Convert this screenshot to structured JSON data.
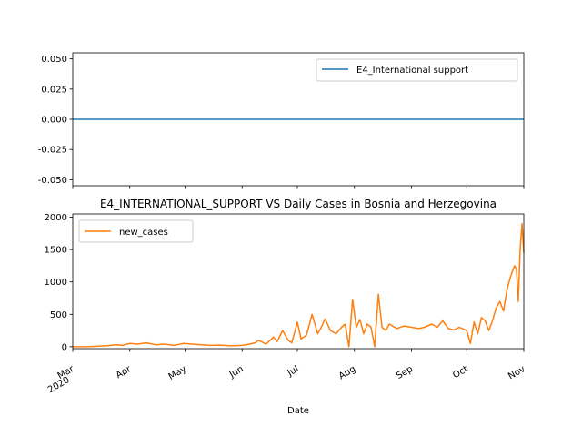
{
  "chart_data": [
    {
      "type": "line",
      "title": "",
      "xlabel": "",
      "ylabel": "",
      "ylim": [
        -0.055,
        0.055
      ],
      "yticks": [
        "0.050",
        "0.025",
        "0.000",
        "-0.025",
        "-0.050"
      ],
      "ytick_values": [
        0.05,
        0.025,
        0.0,
        -0.025,
        -0.05
      ],
      "grid": false,
      "legend": "top-right",
      "series": [
        {
          "name": "E4_International support",
          "color": "#1f77b4",
          "x": [
            "2020-03-01",
            "2020-11-01"
          ],
          "values": [
            0,
            0
          ]
        }
      ]
    },
    {
      "type": "line",
      "title": "E4_INTERNATIONAL_SUPPORT VS Daily Cases in Bosnia and Herzegovina",
      "xlabel": "Date",
      "ylabel": "",
      "ylim": [
        -30,
        2050
      ],
      "yticks": [
        "0",
        "500",
        "1000",
        "1500",
        "2000"
      ],
      "ytick_values": [
        0,
        500,
        1000,
        1500,
        2000
      ],
      "xticks": [
        {
          "label": "Mar",
          "sub": "2020"
        },
        {
          "label": "Apr",
          "sub": ""
        },
        {
          "label": "May",
          "sub": ""
        },
        {
          "label": "Jun",
          "sub": ""
        },
        {
          "label": "Jul",
          "sub": ""
        },
        {
          "label": "Aug",
          "sub": ""
        },
        {
          "label": "Sep",
          "sub": ""
        },
        {
          "label": "Oct",
          "sub": ""
        },
        {
          "label": "Nov",
          "sub": ""
        }
      ],
      "grid": false,
      "legend": "top-left",
      "series": [
        {
          "name": "new_cases",
          "color": "#ff7f0e",
          "x": [
            "2020-03-01",
            "2020-03-10",
            "2020-03-20",
            "2020-03-25",
            "2020-03-28",
            "2020-04-01",
            "2020-04-05",
            "2020-04-10",
            "2020-04-15",
            "2020-04-20",
            "2020-04-25",
            "2020-04-30",
            "2020-05-05",
            "2020-05-10",
            "2020-05-15",
            "2020-05-20",
            "2020-05-25",
            "2020-06-01",
            "2020-06-05",
            "2020-06-08",
            "2020-06-10",
            "2020-06-14",
            "2020-06-18",
            "2020-06-20",
            "2020-06-23",
            "2020-06-26",
            "2020-06-28",
            "2020-07-01",
            "2020-07-03",
            "2020-07-06",
            "2020-07-09",
            "2020-07-12",
            "2020-07-14",
            "2020-07-16",
            "2020-07-19",
            "2020-07-22",
            "2020-07-25",
            "2020-07-27",
            "2020-07-29",
            "2020-07-31",
            "2020-08-02",
            "2020-08-04",
            "2020-08-06",
            "2020-08-08",
            "2020-08-10",
            "2020-08-12",
            "2020-08-14",
            "2020-08-16",
            "2020-08-18",
            "2020-08-20",
            "2020-08-24",
            "2020-08-28",
            "2020-09-01",
            "2020-09-05",
            "2020-09-08",
            "2020-09-12",
            "2020-09-15",
            "2020-09-18",
            "2020-09-21",
            "2020-09-24",
            "2020-09-27",
            "2020-10-01",
            "2020-10-03",
            "2020-10-05",
            "2020-10-07",
            "2020-10-09",
            "2020-10-11",
            "2020-10-13",
            "2020-10-15",
            "2020-10-17",
            "2020-10-19",
            "2020-10-21",
            "2020-10-23",
            "2020-10-25",
            "2020-10-27",
            "2020-10-28",
            "2020-10-29",
            "2020-10-30",
            "2020-10-31",
            "2020-11-01"
          ],
          "values": [
            0,
            2,
            15,
            30,
            20,
            50,
            40,
            60,
            30,
            40,
            20,
            50,
            40,
            30,
            20,
            25,
            15,
            20,
            40,
            60,
            100,
            40,
            150,
            80,
            250,
            100,
            60,
            380,
            120,
            180,
            500,
            200,
            300,
            430,
            250,
            200,
            300,
            350,
            0,
            730,
            300,
            420,
            200,
            350,
            300,
            0,
            810,
            300,
            250,
            350,
            280,
            320,
            300,
            280,
            300,
            350,
            300,
            400,
            280,
            260,
            300,
            250,
            50,
            380,
            200,
            450,
            400,
            250,
            400,
            600,
            700,
            550,
            900,
            1100,
            1250,
            1200,
            700,
            1500,
            1900,
            1450
          ]
        }
      ]
    }
  ]
}
